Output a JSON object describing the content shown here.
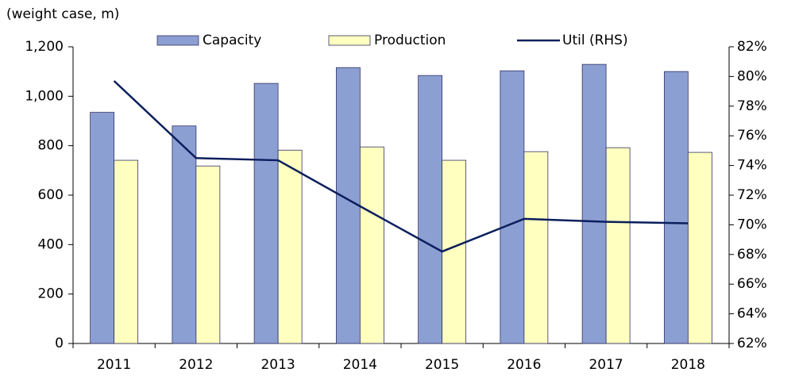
{
  "chart_data": {
    "type": "bar_line",
    "ylabel": "(weight case, m)",
    "categories": [
      "2011",
      "2012",
      "2013",
      "2014",
      "2015",
      "2016",
      "2017",
      "2018"
    ],
    "series": [
      {
        "name": "Capacity",
        "type": "bar",
        "color": "#8c9fd2",
        "values": [
          935,
          880,
          1052,
          1116,
          1084,
          1103,
          1129,
          1100
        ]
      },
      {
        "name": "Production",
        "type": "bar",
        "color": "#ffffc0",
        "values": [
          741,
          718,
          782,
          795,
          741,
          776,
          792,
          773
        ]
      },
      {
        "name": "Util (RHS)",
        "type": "line",
        "axis": "y2",
        "color": "#0a1f5c",
        "values": [
          79.7,
          74.5,
          74.35,
          71.25,
          68.2,
          70.4,
          70.2,
          70.1
        ]
      }
    ],
    "ylim": [
      0,
      1200
    ],
    "yticks": [
      0,
      200,
      400,
      600,
      800,
      {
        "value": 1000,
        "label": "1,000"
      },
      {
        "value": 1200,
        "label": "1,200"
      }
    ],
    "y2lim": [
      62,
      82
    ],
    "y2ticks": [
      {
        "value": 62,
        "label": "62%"
      },
      {
        "value": 64,
        "label": "64%"
      },
      {
        "value": 66,
        "label": "66%"
      },
      {
        "value": 68,
        "label": "68%"
      },
      {
        "value": 70,
        "label": "70%"
      },
      {
        "value": 72,
        "label": "72%"
      },
      {
        "value": 74,
        "label": "74%"
      },
      {
        "value": 76,
        "label": "76%"
      },
      {
        "value": 78,
        "label": "78%"
      },
      {
        "value": 80,
        "label": "80%"
      },
      {
        "value": 82,
        "label": "82%"
      }
    ],
    "grid": false
  }
}
